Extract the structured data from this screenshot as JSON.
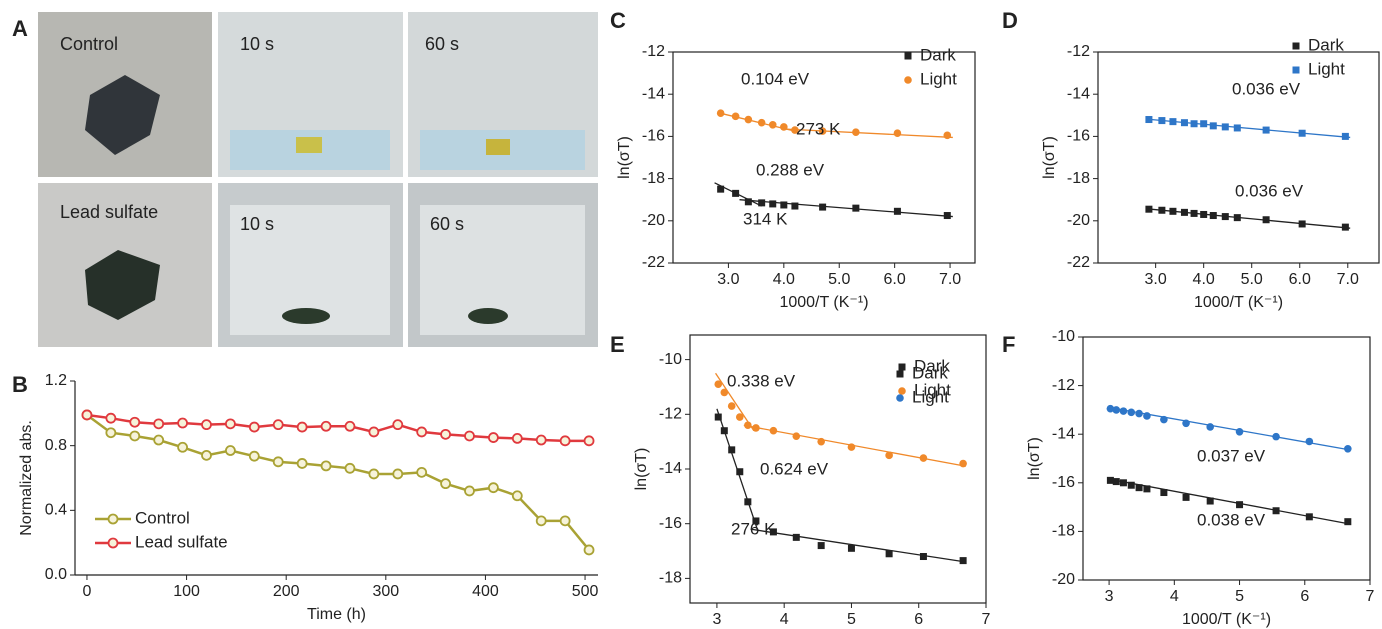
{
  "photos": {
    "panel_label": "A",
    "labels": [
      "Control",
      "10 s",
      "60 s",
      "Lead sulfate",
      "10 s",
      "60 s"
    ]
  },
  "chart_data": [
    {
      "type": "line",
      "panel_label": "B",
      "y_label": "Normalized abs.",
      "x_label": "Time (h)",
      "frame": "axes",
      "legend": "lower left",
      "x": [
        0,
        24,
        48,
        72,
        96,
        120,
        144,
        168,
        192,
        216,
        240,
        264,
        288,
        312,
        336,
        360,
        384,
        408,
        432,
        456,
        480,
        504
      ],
      "xlim": [
        -12,
        513
      ],
      "xticks": [
        0,
        100,
        200,
        300,
        400,
        500
      ],
      "ylim": [
        0,
        1.2
      ],
      "yticks": [
        {
          "value": 0,
          "label": "0.0"
        },
        0.4,
        0.8,
        1.2
      ],
      "series": [
        {
          "name": "Control",
          "color": "#a9a234",
          "values": [
            0.99,
            0.88,
            0.86,
            0.835,
            0.79,
            0.74,
            0.77,
            0.735,
            0.7,
            0.69,
            0.675,
            0.66,
            0.625,
            0.625,
            0.635,
            0.565,
            0.52,
            0.54,
            0.49,
            0.335,
            0.335,
            0.155
          ]
        },
        {
          "name": "Lead sulfate",
          "color": "#e0393e",
          "values": [
            0.99,
            0.97,
            0.945,
            0.935,
            0.94,
            0.93,
            0.935,
            0.915,
            0.93,
            0.915,
            0.92,
            0.92,
            0.885,
            0.93,
            0.885,
            0.87,
            0.86,
            0.85,
            0.845,
            0.835,
            0.83,
            0.83
          ]
        }
      ]
    },
    {
      "type": "scatter",
      "panel_label": "C",
      "y_label": "ln(σT)",
      "x_label": "1000/T (K⁻¹)",
      "frame": "box",
      "legend": "upper right",
      "x": [
        2.86,
        3.13,
        3.36,
        3.6,
        3.8,
        4.0,
        4.2,
        4.7,
        5.3,
        6.05,
        6.95
      ],
      "xlim": [
        2.0,
        7.45
      ],
      "xticks": [
        {
          "value": 3,
          "label": "3.0"
        },
        {
          "value": 4,
          "label": "4.0"
        },
        {
          "value": 5,
          "label": "5.0"
        },
        {
          "value": 6,
          "label": "6.0"
        },
        {
          "value": 7,
          "label": "7.0"
        }
      ],
      "ylim": [
        -22,
        -12
      ],
      "yticks": [
        -22,
        -20,
        -18,
        -16,
        -14,
        -12
      ],
      "series": [
        {
          "name": "Dark",
          "color": "#222222",
          "marker": "square",
          "values": [
            -18.5,
            -18.7,
            -19.1,
            -19.15,
            -19.2,
            -19.25,
            -19.3,
            -19.35,
            -19.4,
            -19.55,
            -19.75
          ]
        },
        {
          "name": "Light",
          "color": "#f0892a",
          "marker": "circle",
          "values": [
            -14.9,
            -15.05,
            -15.2,
            -15.35,
            -15.45,
            -15.55,
            -15.7,
            -15.75,
            -15.8,
            -15.85,
            -15.95
          ]
        }
      ],
      "fit_lines": [
        {
          "color": "#f0892a",
          "x": [
            2.85,
            4.2
          ],
          "y": [
            -14.9,
            -15.75
          ]
        },
        {
          "color": "#f0892a",
          "x": [
            4.0,
            7.05
          ],
          "y": [
            -15.65,
            -16.05
          ]
        },
        {
          "color": "#222222",
          "x": [
            2.75,
            3.6
          ],
          "y": [
            -18.2,
            -19.3
          ]
        },
        {
          "color": "#222222",
          "x": [
            3.2,
            7.05
          ],
          "y": [
            -19.0,
            -19.8
          ]
        }
      ],
      "annotations": [
        "0.104 eV",
        "273 K",
        "0.288 eV",
        "314 K"
      ]
    },
    {
      "type": "scatter",
      "panel_label": "D",
      "y_label": "ln(σT)",
      "x_label": "1000/T (K⁻¹)",
      "frame": "box",
      "legend": "upper right",
      "x": [
        2.86,
        3.13,
        3.36,
        3.6,
        3.8,
        4.0,
        4.2,
        4.45,
        4.7,
        5.3,
        6.05,
        6.95
      ],
      "xlim": [
        1.8,
        7.65
      ],
      "xticks": [
        {
          "value": 3,
          "label": "3.0"
        },
        {
          "value": 4,
          "label": "4.0"
        },
        {
          "value": 5,
          "label": "5.0"
        },
        {
          "value": 6,
          "label": "6.0"
        },
        {
          "value": 7,
          "label": "7.0"
        }
      ],
      "ylim": [
        -22,
        -12
      ],
      "yticks": [
        -22,
        -20,
        -18,
        -16,
        -14,
        -12
      ],
      "series": [
        {
          "name": "Dark",
          "color": "#222222",
          "marker": "square",
          "values": [
            -19.45,
            -19.5,
            -19.55,
            -19.6,
            -19.65,
            -19.7,
            -19.75,
            -19.8,
            -19.85,
            -19.95,
            -20.15,
            -20.3
          ]
        },
        {
          "name": "Light",
          "color": "#2e76c8",
          "marker": "square",
          "values": [
            -15.2,
            -15.25,
            -15.3,
            -15.35,
            -15.4,
            -15.4,
            -15.5,
            -15.55,
            -15.6,
            -15.7,
            -15.85,
            -16.0
          ]
        }
      ],
      "fit_lines": [
        {
          "color": "#2e76c8",
          "x": [
            2.9,
            7.05
          ],
          "y": [
            -15.2,
            -16.05
          ]
        },
        {
          "color": "#222222",
          "x": [
            2.9,
            7.05
          ],
          "y": [
            -19.45,
            -20.35
          ]
        }
      ],
      "annotations": [
        "0.036 eV",
        "0.036 eV"
      ]
    },
    {
      "type": "scatter",
      "panel_label": "E",
      "y_label": "ln(σT)",
      "x_label": "1000/T (K⁻¹)",
      "frame": "box",
      "legend": "upper right",
      "x": [
        3.02,
        3.11,
        3.22,
        3.34,
        3.46,
        3.58,
        3.84,
        4.18,
        4.55,
        5.0,
        5.56,
        6.07,
        6.66
      ],
      "xlim": [
        2.6,
        7
      ],
      "xticks": [
        3,
        4,
        5,
        6,
        7
      ],
      "ylim": [
        -18.9,
        -9.1
      ],
      "yticks": [
        -18,
        -16,
        -14,
        -12,
        -10
      ],
      "series": [
        {
          "name": "Dark",
          "color": "#222222",
          "marker": "square",
          "values": [
            -12.1,
            -12.6,
            -13.3,
            -14.1,
            -15.2,
            -15.9,
            -16.3,
            -16.5,
            -16.8,
            -16.9,
            -17.1,
            -17.2,
            -17.35
          ]
        },
        {
          "name": "Light",
          "color": "#f0892a",
          "marker": "circle",
          "values": [
            -10.9,
            -11.2,
            -11.7,
            -12.1,
            -12.4,
            -12.5,
            -12.6,
            -12.8,
            -13.0,
            -13.2,
            -13.5,
            -13.6,
            -13.8
          ]
        }
      ],
      "fit_lines": [
        {
          "color": "#f0892a",
          "x": [
            2.98,
            3.55
          ],
          "y": [
            -10.5,
            -12.6
          ]
        },
        {
          "color": "#f0892a",
          "x": [
            3.4,
            6.7
          ],
          "y": [
            -12.4,
            -13.9
          ]
        },
        {
          "color": "#222222",
          "x": [
            3.0,
            3.6
          ],
          "y": [
            -11.8,
            -16.2
          ]
        },
        {
          "color": "#222222",
          "x": [
            3.5,
            6.7
          ],
          "y": [
            -16.2,
            -17.4
          ]
        }
      ],
      "annotations": [
        "0.338 eV",
        "0.624 eV",
        "276 K"
      ]
    },
    {
      "type": "scatter",
      "panel_label": "F",
      "y_label": "ln(σT)",
      "x_label": "1000/T (K⁻¹)",
      "frame": "box",
      "legend": "upper right",
      "x": [
        3.02,
        3.11,
        3.22,
        3.34,
        3.46,
        3.58,
        3.84,
        4.18,
        4.55,
        5.0,
        5.56,
        6.07,
        6.66
      ],
      "xlim": [
        2.6,
        7
      ],
      "xticks": [
        3,
        4,
        5,
        6,
        7
      ],
      "ylim": [
        -20,
        -10
      ],
      "yticks": [
        -20,
        -18,
        -16,
        -14,
        -12,
        -10
      ],
      "series": [
        {
          "name": "Dark",
          "color": "#222222",
          "marker": "square",
          "values": [
            -15.9,
            -15.95,
            -16.0,
            -16.1,
            -16.2,
            -16.25,
            -16.4,
            -16.6,
            -16.75,
            -16.9,
            -17.15,
            -17.4,
            -17.6
          ]
        },
        {
          "name": "Light",
          "color": "#2e76c8",
          "marker": "circle",
          "values": [
            -12.95,
            -13.0,
            -13.05,
            -13.1,
            -13.15,
            -13.25,
            -13.4,
            -13.55,
            -13.7,
            -13.9,
            -14.1,
            -14.3,
            -14.6
          ]
        }
      ],
      "fit_lines": [
        {
          "color": "#2e76c8",
          "x": [
            3.0,
            6.7
          ],
          "y": [
            -12.9,
            -14.65
          ]
        },
        {
          "color": "#222222",
          "x": [
            3.0,
            6.7
          ],
          "y": [
            -15.85,
            -17.7
          ]
        }
      ],
      "annotations": [
        "0.037 eV",
        "0.038 eV"
      ]
    }
  ]
}
